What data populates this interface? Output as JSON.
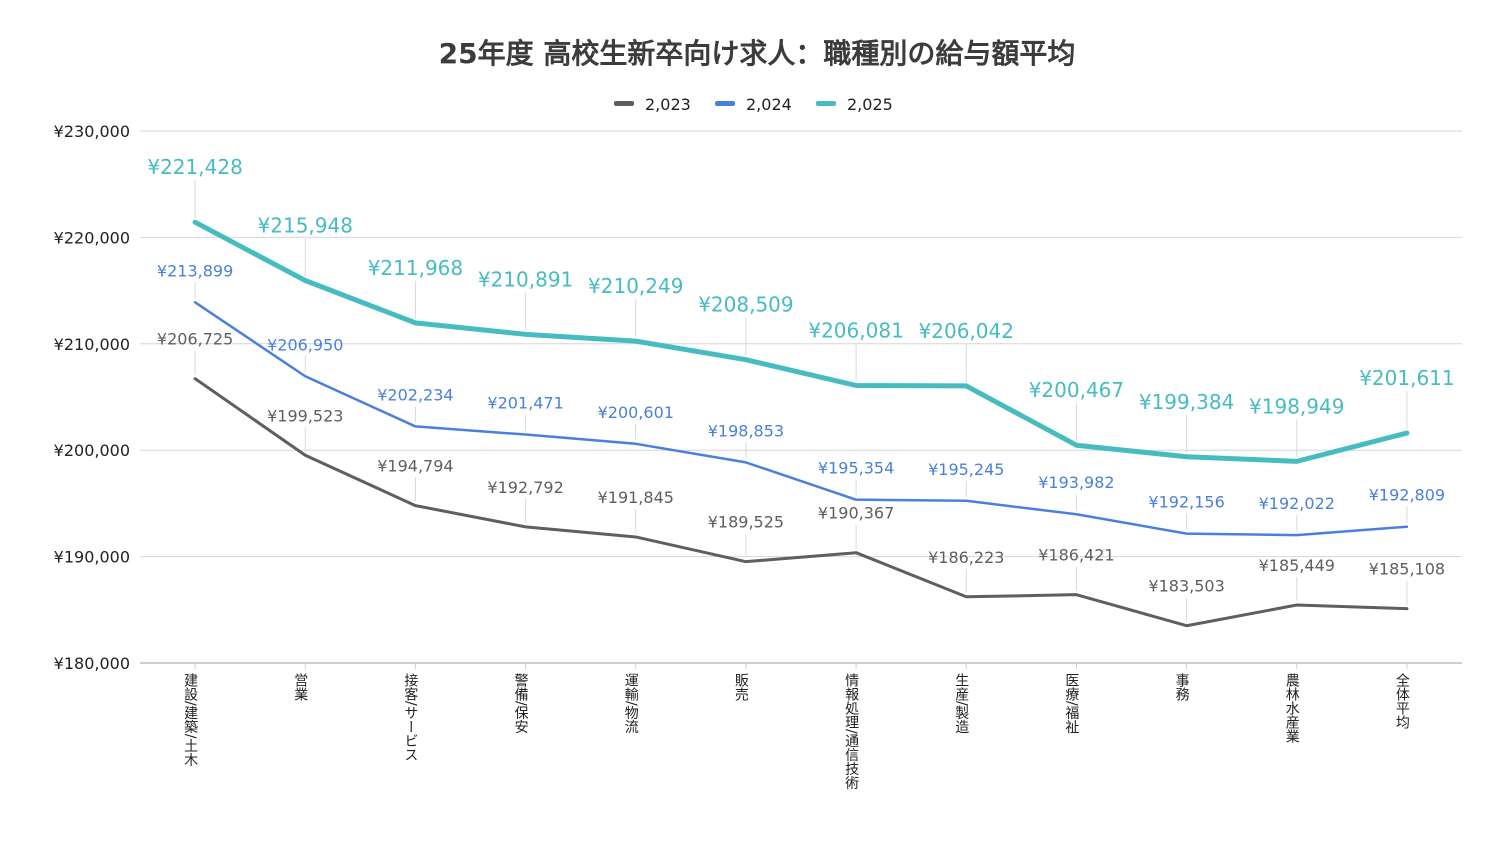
{
  "chart_data": {
    "type": "line",
    "title": "25年度 高校生新卒向け求人：職種別の給与額平均",
    "categories": [
      "建設/建築/土木",
      "営業",
      "接客/サービス",
      "警備/保安",
      "運輸/物流",
      "販売",
      "情報処理/通信技術",
      "生産/製造",
      "医療/福祉",
      "事務",
      "農林水産業",
      "全体平均"
    ],
    "series": [
      {
        "name": "2,023",
        "color": "#5f5f5f",
        "values": [
          206725,
          199523,
          194794,
          192792,
          191845,
          189525,
          190367,
          186223,
          186421,
          183503,
          185449,
          185108
        ],
        "labels": [
          "¥206,725",
          "¥199,523",
          "¥194,794",
          "¥192,792",
          "¥191,845",
          "¥189,525",
          "¥190,367",
          "¥186,223",
          "¥186,421",
          "¥183,503",
          "¥185,449",
          "¥185,108"
        ]
      },
      {
        "name": "2,024",
        "color": "#4a80dc",
        "values": [
          213899,
          206950,
          202234,
          201471,
          200601,
          198853,
          195354,
          195245,
          193982,
          192156,
          192022,
          192809
        ],
        "labels": [
          "¥213,899",
          "¥206,950",
          "¥202,234",
          "¥201,471",
          "¥200,601",
          "¥198,853",
          "¥195,354",
          "¥195,245",
          "¥193,982",
          "¥192,156",
          "¥192,022",
          "¥192,809"
        ]
      },
      {
        "name": "2,025",
        "color": "#47bcc0",
        "values": [
          221428,
          215948,
          211968,
          210891,
          210249,
          208509,
          206081,
          206042,
          200467,
          199384,
          198949,
          201611
        ],
        "labels": [
          "¥221,428",
          "¥215,948",
          "¥211,968",
          "¥210,891",
          "¥210,249",
          "¥208,509",
          "¥206,081",
          "¥206,042",
          "¥200,467",
          "¥199,384",
          "¥198,949",
          "¥201,611"
        ]
      }
    ],
    "ylim": [
      180000,
      230000
    ],
    "yticks": [
      180000,
      190000,
      200000,
      210000,
      220000,
      230000
    ],
    "ytick_labels": [
      "¥180,000",
      "¥190,000",
      "¥200,000",
      "¥210,000",
      "¥220,000",
      "¥230,000"
    ],
    "grid": true,
    "legend_position": "top-center"
  }
}
